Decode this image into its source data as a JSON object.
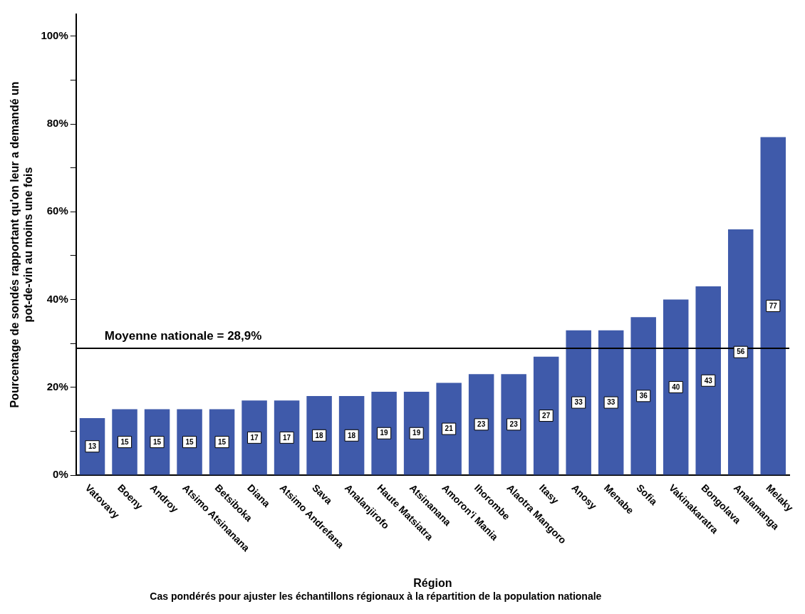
{
  "chart_data": {
    "type": "bar",
    "xlabel": "Région",
    "ylabel": "Pourcentage de sondés rapportant qu'on leur a demandé un pot-de-vin au moins une fois",
    "categories": [
      "Vatovavy",
      "Boeny",
      "Androy",
      "Atsimo Atsinanana",
      "Betsiboka",
      "Diana",
      "Atsimo Andrefana",
      "Sava",
      "Analanjirofo",
      "Haute Matsiatra",
      "Atsinanana",
      "Amoron'i Mania",
      "Ihorombe",
      "Alaotra Mangoro",
      "Itasy",
      "Anosy",
      "Menabe",
      "Sofia",
      "Vakinakaratra",
      "Bongolava",
      "Analamanga",
      "Melaky"
    ],
    "values": [
      13,
      15,
      15,
      15,
      15,
      17,
      17,
      18,
      18,
      19,
      19,
      21,
      23,
      23,
      27,
      33,
      33,
      36,
      40,
      43,
      56,
      77
    ],
    "color": "#3f5aaa",
    "data_labels": true,
    "ylim": [
      0,
      105
    ],
    "yticks": [
      {
        "value": 0,
        "label": "0%"
      },
      {
        "value": 10,
        "label": null
      },
      {
        "value": 20,
        "label": "20%"
      },
      {
        "value": 30,
        "label": null
      },
      {
        "value": 40,
        "label": "40%"
      },
      {
        "value": 50,
        "label": null
      },
      {
        "value": 60,
        "label": "60%"
      },
      {
        "value": 70,
        "label": null
      },
      {
        "value": 80,
        "label": "80%"
      },
      {
        "value": 90,
        "label": null
      },
      {
        "value": 100,
        "label": "100%"
      }
    ],
    "ref_lines": [
      {
        "axis": "y",
        "value": 28.9,
        "label": "Moyenne nationale = 28,9%",
        "color": "#000000"
      }
    ],
    "annotations": [
      "Cas pondérés pour ajuster les échantillons régionaux à la répartition de la population nationale"
    ],
    "grid": false,
    "legend": false
  }
}
